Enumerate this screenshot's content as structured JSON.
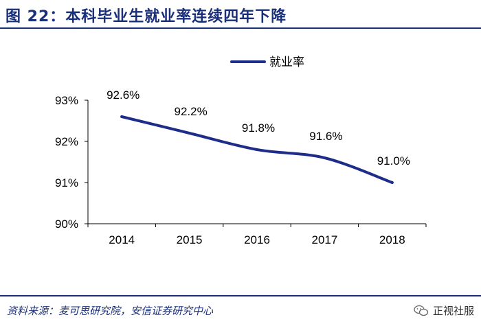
{
  "header": {
    "title": "图 22：本科毕业生就业率连续四年下降"
  },
  "footer": {
    "source": "资料来源：麦可思研究院，安信证券研究中心",
    "watermark": "正视社服"
  },
  "colors": {
    "accent": "#1a2f7a",
    "line": "#1f2d8a"
  },
  "chart_data": {
    "type": "line",
    "categories": [
      "2014",
      "2015",
      "2016",
      "2017",
      "2018"
    ],
    "series": [
      {
        "name": "就业率",
        "values": [
          92.6,
          92.2,
          91.8,
          91.6,
          91.0
        ],
        "labels": [
          "92.6%",
          "92.2%",
          "91.8%",
          "91.6%",
          "91.0%"
        ]
      }
    ],
    "yticks": [
      "90%",
      "91%",
      "92%",
      "93%"
    ],
    "ytick_values": [
      90,
      91,
      92,
      93
    ],
    "ylim": [
      90,
      93
    ],
    "legend_position": "top-right",
    "grid": false
  }
}
